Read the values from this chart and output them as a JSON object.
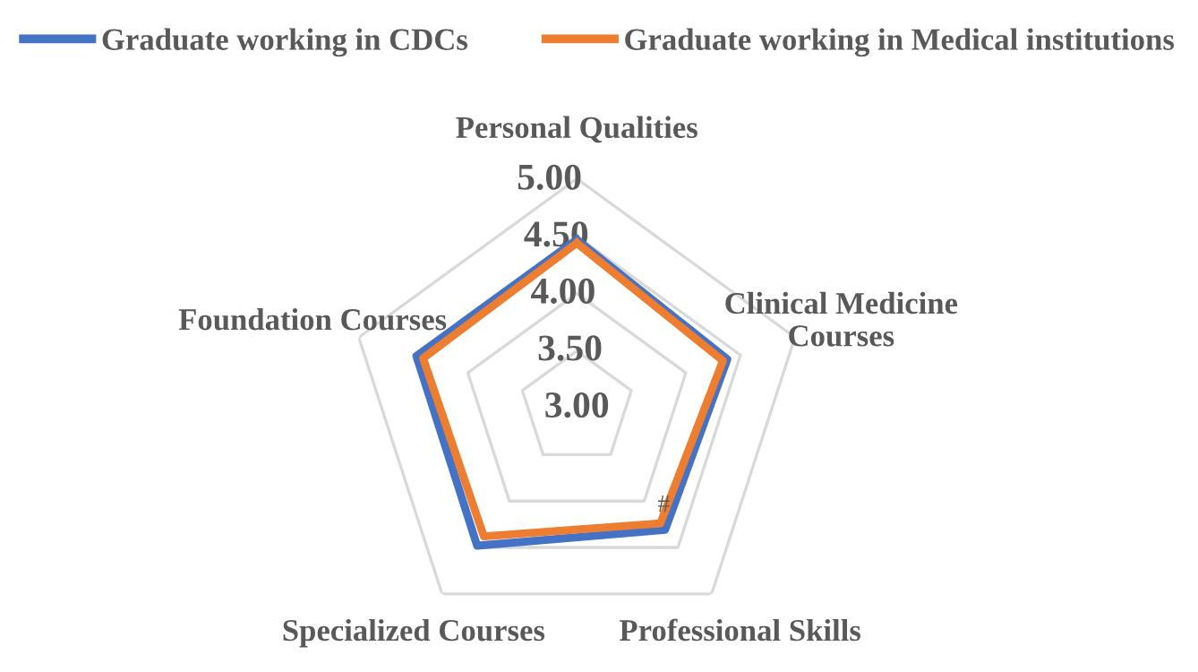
{
  "chart_data": {
    "type": "radar",
    "categories": [
      "Personal Qualities",
      "Clinical Medicine Courses",
      "Professional Skills",
      "Specialized Courses",
      "Foundation Courses"
    ],
    "series": [
      {
        "name": "Graduate working in CDCs",
        "color": "#4472c4",
        "values": [
          4.47,
          4.38,
          4.31,
          4.48,
          4.47
        ]
      },
      {
        "name": "Graduate working in Medical institutions",
        "color": "#ed7d31",
        "values": [
          4.44,
          4.34,
          4.24,
          4.38,
          4.41
        ]
      }
    ],
    "ylim": [
      3,
      5
    ],
    "yticks": [
      {
        "value": 3,
        "label": "3.00"
      },
      {
        "value": 3.5,
        "label": "3.50"
      },
      {
        "value": 4,
        "label": "4.00"
      },
      {
        "value": 4.5,
        "label": "4.50"
      },
      {
        "value": 5,
        "label": "5.00"
      }
    ],
    "grid": true,
    "legend": "top",
    "annotations": [
      {
        "text": "#",
        "x": "Professional Skills"
      }
    ]
  }
}
